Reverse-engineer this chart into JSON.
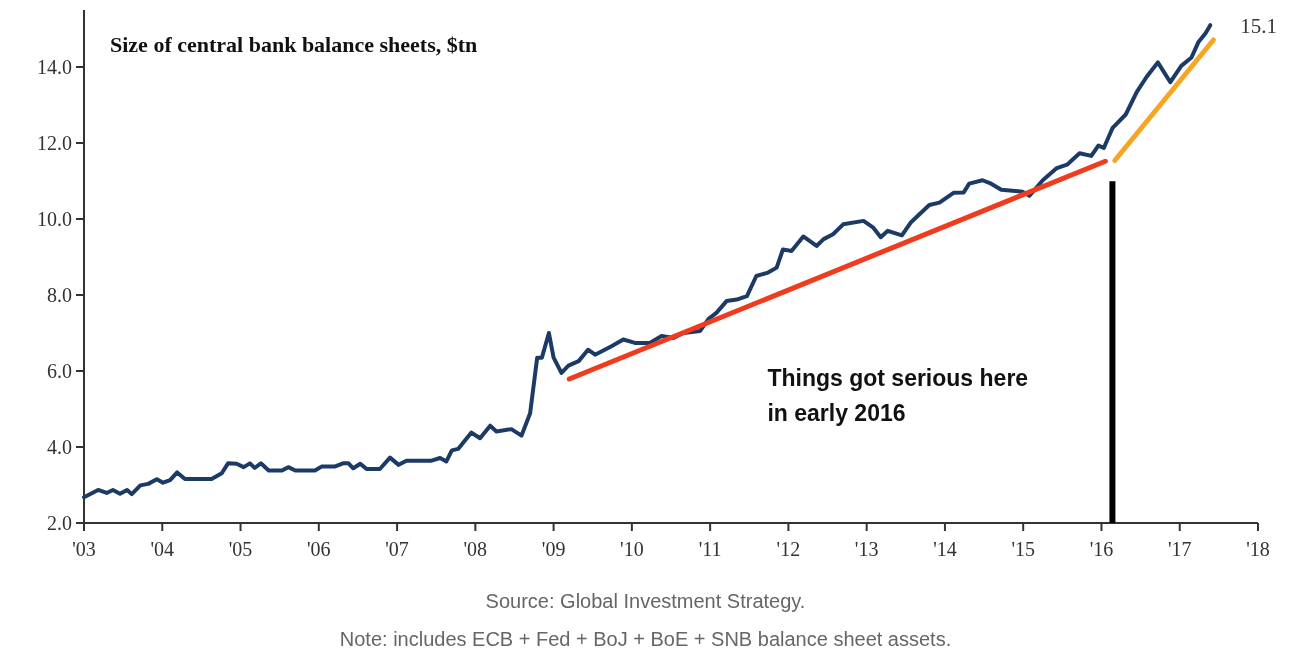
{
  "chart_data": {
    "type": "line",
    "title": "Size of central bank balance sheets, $tn",
    "xlim": [
      2003,
      2018
    ],
    "ylim": [
      2,
      15.5
    ],
    "xticks": [
      {
        "value": 2003,
        "label": "'03"
      },
      {
        "value": 2004,
        "label": "'04"
      },
      {
        "value": 2005,
        "label": "'05"
      },
      {
        "value": 2006,
        "label": "'06"
      },
      {
        "value": 2007,
        "label": "'07"
      },
      {
        "value": 2008,
        "label": "'08"
      },
      {
        "value": 2009,
        "label": "'09"
      },
      {
        "value": 2010,
        "label": "'10"
      },
      {
        "value": 2011,
        "label": "'11"
      },
      {
        "value": 2012,
        "label": "'12"
      },
      {
        "value": 2013,
        "label": "'13"
      },
      {
        "value": 2014,
        "label": "'14"
      },
      {
        "value": 2015,
        "label": "'15"
      },
      {
        "value": 2016,
        "label": "'16"
      },
      {
        "value": 2017,
        "label": "'17"
      },
      {
        "value": 2018,
        "label": "'18"
      }
    ],
    "yticks": [
      {
        "value": 2,
        "label": "2.0"
      },
      {
        "value": 4,
        "label": "4.0"
      },
      {
        "value": 6,
        "label": "6.0"
      },
      {
        "value": 8,
        "label": "8.0"
      },
      {
        "value": 10,
        "label": "10.0"
      },
      {
        "value": 12,
        "label": "12.0"
      },
      {
        "value": 14,
        "label": "14.0"
      }
    ],
    "series": [
      {
        "color": "#1b3a66",
        "x": [
          2003.0,
          2003.18,
          2003.29,
          2003.37,
          2003.46,
          2003.55,
          2003.61,
          2003.72,
          2003.82,
          2003.93,
          2004.01,
          2004.1,
          2004.19,
          2004.29,
          2004.63,
          2004.76,
          2004.84,
          2004.95,
          2005.04,
          2005.12,
          2005.18,
          2005.26,
          2005.36,
          2005.53,
          2005.61,
          2005.7,
          2005.95,
          2006.04,
          2006.21,
          2006.31,
          2006.38,
          2006.44,
          2006.53,
          2006.61,
          2006.78,
          2006.91,
          2007.02,
          2007.12,
          2007.44,
          2007.55,
          2007.63,
          2007.7,
          2007.78,
          2007.95,
          2008.06,
          2008.19,
          2008.27,
          2008.46,
          2008.59,
          2008.7,
          2008.79,
          2008.85,
          2008.94,
          2009.0,
          2009.1,
          2009.19,
          2009.32,
          2009.44,
          2009.53,
          2009.74,
          2009.89,
          2010.04,
          2010.23,
          2010.38,
          2010.53,
          2010.66,
          2010.87,
          2010.98,
          2011.08,
          2011.21,
          2011.34,
          2011.47,
          2011.59,
          2011.74,
          2011.85,
          2011.93,
          2012.04,
          2012.19,
          2012.36,
          2012.45,
          2012.57,
          2012.7,
          2012.96,
          2013.08,
          2013.18,
          2013.27,
          2013.45,
          2013.56,
          2013.8,
          2013.93,
          2014.11,
          2014.24,
          2014.31,
          2014.48,
          2014.59,
          2014.72,
          2014.99,
          2015.08,
          2015.25,
          2015.43,
          2015.56,
          2015.72,
          2015.87,
          2015.96,
          2016.03,
          2016.14,
          2016.31,
          2016.45,
          2016.58,
          2016.72,
          2016.88,
          2017.02,
          2017.15,
          2017.24,
          2017.33,
          2017.39
        ],
        "values": [
          2.68,
          2.87,
          2.79,
          2.87,
          2.77,
          2.87,
          2.76,
          2.99,
          3.03,
          3.15,
          3.06,
          3.13,
          3.33,
          3.16,
          3.16,
          3.31,
          3.57,
          3.56,
          3.47,
          3.57,
          3.45,
          3.57,
          3.38,
          3.38,
          3.47,
          3.38,
          3.38,
          3.49,
          3.49,
          3.57,
          3.57,
          3.44,
          3.56,
          3.42,
          3.42,
          3.72,
          3.53,
          3.64,
          3.64,
          3.71,
          3.62,
          3.91,
          3.95,
          4.38,
          4.23,
          4.56,
          4.41,
          4.47,
          4.3,
          4.89,
          6.35,
          6.35,
          7.0,
          6.35,
          5.95,
          6.14,
          6.26,
          6.56,
          6.43,
          6.65,
          6.83,
          6.74,
          6.74,
          6.92,
          6.87,
          7.0,
          7.05,
          7.37,
          7.53,
          7.84,
          7.88,
          7.97,
          8.5,
          8.59,
          8.72,
          9.2,
          9.16,
          9.54,
          9.29,
          9.47,
          9.6,
          9.86,
          9.95,
          9.78,
          9.52,
          9.69,
          9.57,
          9.9,
          10.37,
          10.43,
          10.69,
          10.7,
          10.93,
          11.02,
          10.93,
          10.77,
          10.72,
          10.61,
          11.02,
          11.34,
          11.43,
          11.73,
          11.66,
          11.93,
          11.87,
          12.39,
          12.75,
          13.34,
          13.75,
          14.12,
          13.6,
          14.03,
          14.25,
          14.66,
          14.89,
          15.1
        ]
      },
      {
        "type": "line",
        "color": "#f03c1e",
        "x": [
          2009.2,
          2016.05
        ],
        "values": [
          5.79,
          11.52
        ]
      },
      {
        "type": "line",
        "color": "#f5a623",
        "x": [
          2016.17,
          2017.43
        ],
        "values": [
          11.54,
          14.71
        ]
      }
    ],
    "ref_lines": [
      {
        "axis": "x",
        "value": 2016.14,
        "label": "Things got serious here in early 2016",
        "color": "#000000"
      }
    ],
    "annotations": [
      {
        "text": "15.1",
        "x": 2017.39,
        "y": 15.1
      },
      "Source: Global Investment Strategy.",
      "Note: includes ECB + Fed + BoJ + BoE + SNB balance sheet assets."
    ]
  }
}
